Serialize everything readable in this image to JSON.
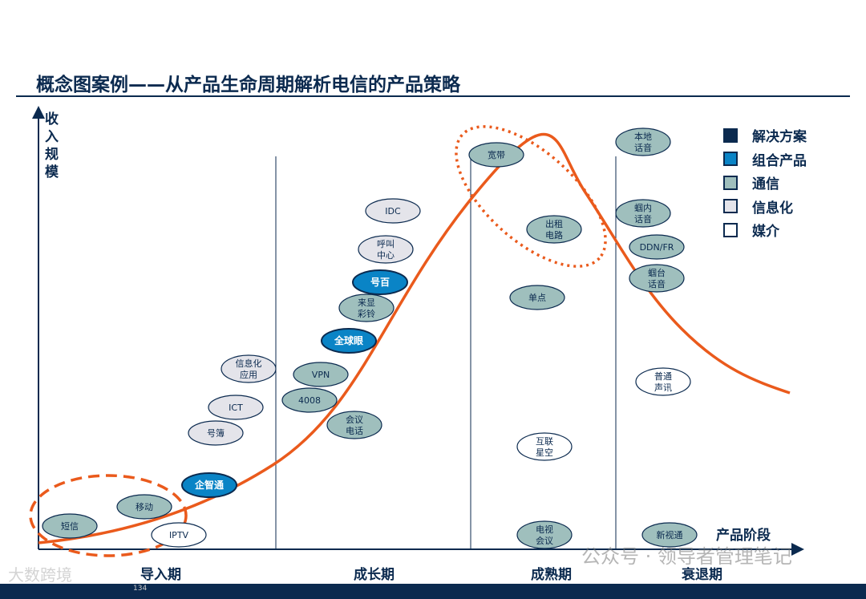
{
  "title": "概念图案例——从产品生命周期解析电信的产品策略",
  "y_axis_label": "收入规模",
  "x_axis_label": "产品阶段",
  "stages": [
    "导入期",
    "成长期",
    "成熟期",
    "衰退期"
  ],
  "colors": {
    "solution": "#0b2a4f",
    "combo": "#0a84c6",
    "telecom": "#9fbfbd",
    "info": "#e4e4ea",
    "media": "#ffffff",
    "curve": "#ea5a1c"
  },
  "legend": [
    {
      "label": "解决方案",
      "type": "solution"
    },
    {
      "label": "组合产品",
      "type": "combo"
    },
    {
      "label": "通信",
      "type": "telecom"
    },
    {
      "label": "信息化",
      "type": "info"
    },
    {
      "label": "媒介",
      "type": "media"
    }
  ],
  "products": [
    {
      "label": [
        "短信"
      ],
      "type": "telecom",
      "stage": "导入期"
    },
    {
      "label": [
        "移动"
      ],
      "type": "telecom",
      "stage": "导入期"
    },
    {
      "label": [
        "IPTV"
      ],
      "type": "media",
      "stage": "导入期"
    },
    {
      "label": [
        "企智通"
      ],
      "type": "combo",
      "stage": "导入期"
    },
    {
      "label": [
        "号簿"
      ],
      "type": "info",
      "stage": "导入期"
    },
    {
      "label": [
        "ICT"
      ],
      "type": "info",
      "stage": "导入期"
    },
    {
      "label": [
        "信息化",
        "应用"
      ],
      "type": "info",
      "stage": "导入期"
    },
    {
      "label": [
        "4008"
      ],
      "type": "telecom",
      "stage": "成长期"
    },
    {
      "label": [
        "VPN"
      ],
      "type": "telecom",
      "stage": "成长期"
    },
    {
      "label": [
        "会议",
        "电话"
      ],
      "type": "telecom",
      "stage": "成长期"
    },
    {
      "label": [
        "全球眼"
      ],
      "type": "combo",
      "stage": "成长期"
    },
    {
      "label": [
        "来显",
        "彩铃"
      ],
      "type": "telecom",
      "stage": "成长期"
    },
    {
      "label": [
        "号百"
      ],
      "type": "combo",
      "stage": "成长期"
    },
    {
      "label": [
        "呼叫",
        "中心"
      ],
      "type": "info",
      "stage": "成长期"
    },
    {
      "label": [
        "IDC"
      ],
      "type": "info",
      "stage": "成长期"
    },
    {
      "label": [
        "宽带"
      ],
      "type": "telecom",
      "stage": "成熟期"
    },
    {
      "label": [
        "出租",
        "电路"
      ],
      "type": "telecom",
      "stage": "成熟期"
    },
    {
      "label": [
        "单点"
      ],
      "type": "telecom",
      "stage": "成熟期"
    },
    {
      "label": [
        "互联",
        "星空"
      ],
      "type": "media",
      "stage": "成熟期"
    },
    {
      "label": [
        "电视",
        "会议"
      ],
      "type": "telecom",
      "stage": "成熟期"
    },
    {
      "label": [
        "本地",
        "话音"
      ],
      "type": "telecom",
      "stage": "衰退期"
    },
    {
      "label": [
        "蝈内",
        "话音"
      ],
      "type": "telecom",
      "stage": "衰退期"
    },
    {
      "label": [
        "DDN/FR"
      ],
      "type": "telecom",
      "stage": "衰退期"
    },
    {
      "label": [
        "蝈台",
        "话音"
      ],
      "type": "telecom",
      "stage": "衰退期"
    },
    {
      "label": [
        "普通",
        "声讯"
      ],
      "type": "media",
      "stage": "衰退期"
    },
    {
      "label": [
        "新视通"
      ],
      "type": "telecom",
      "stage": "衰退期"
    }
  ],
  "watermark": "公众号 · 领导者管理笔记",
  "brand_watermark": "大数跨境",
  "page_number": "134"
}
